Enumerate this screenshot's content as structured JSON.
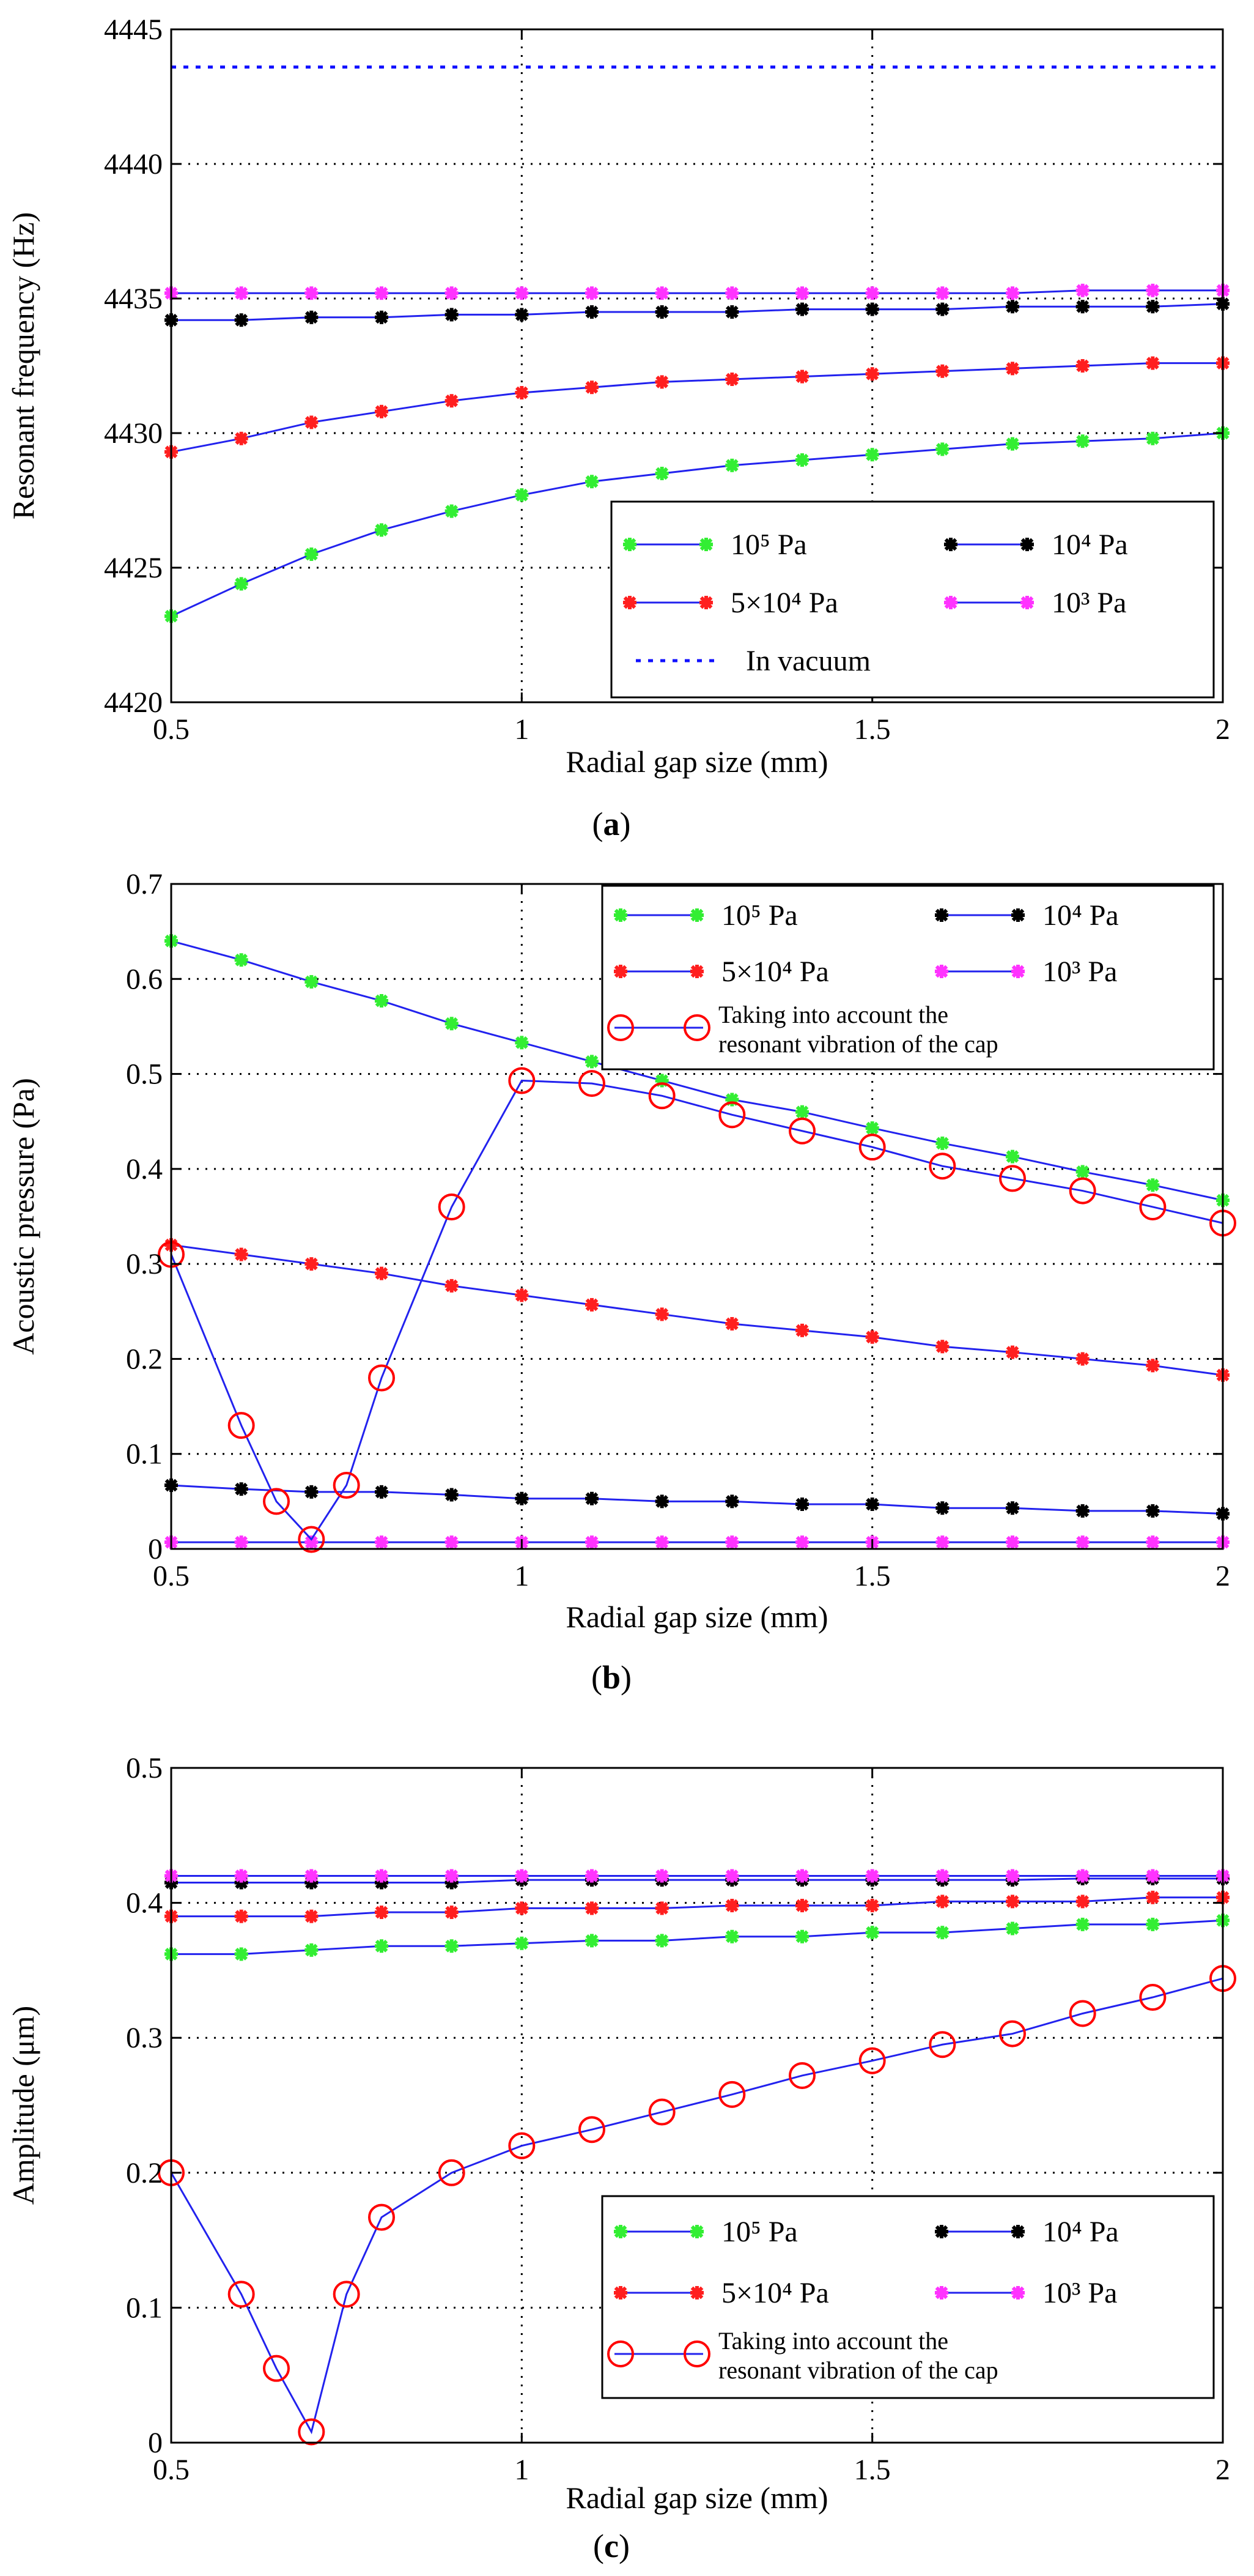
{
  "colors": {
    "green": "#33ee33",
    "black": "#000000",
    "red": "#ff1f1f",
    "magenta": "#ff33ff",
    "blue_line": "#2222ee",
    "open_red": "#ff0000",
    "vacuum": "#1010ff"
  },
  "chart_data": [
    {
      "id": "a",
      "type": "line",
      "caption_letter": "a",
      "xlabel": "Radial gap size (mm)",
      "ylabel": "Resonant frequency (Hz)",
      "xlim": [
        0.5,
        2
      ],
      "ylim": [
        4420,
        4445
      ],
      "xticks": [
        0.5,
        1,
        1.5,
        2
      ],
      "xtick_labels": [
        "0.5",
        "1",
        "1.5",
        "2"
      ],
      "yticks": [
        4420,
        4425,
        4430,
        4435,
        4440,
        4445
      ],
      "ytick_labels": [
        "4420",
        "4425",
        "4430",
        "4435",
        "4440",
        "4445"
      ],
      "grid": true,
      "legend_position": "lower-right",
      "x": [
        0.5,
        0.6,
        0.7,
        0.8,
        0.9,
        1.0,
        1.1,
        1.2,
        1.3,
        1.4,
        1.5,
        1.6,
        1.7,
        1.8,
        1.9,
        2.0
      ],
      "series": [
        {
          "name": "10⁵ Pa",
          "color": "green",
          "marker": "star",
          "values": [
            4423.2,
            4424.4,
            4425.5,
            4426.4,
            4427.1,
            4427.7,
            4428.2,
            4428.5,
            4428.8,
            4429.0,
            4429.2,
            4429.4,
            4429.6,
            4429.7,
            4429.8,
            4430.0
          ]
        },
        {
          "name": "10⁴ Pa",
          "color": "black",
          "marker": "star",
          "values": [
            4434.2,
            4434.2,
            4434.3,
            4434.3,
            4434.4,
            4434.4,
            4434.5,
            4434.5,
            4434.5,
            4434.6,
            4434.6,
            4434.6,
            4434.7,
            4434.7,
            4434.7,
            4434.8
          ]
        },
        {
          "name": "5×10⁴ Pa",
          "color": "red",
          "marker": "star",
          "values": [
            4429.3,
            4429.8,
            4430.4,
            4430.8,
            4431.2,
            4431.5,
            4431.7,
            4431.9,
            4432.0,
            4432.1,
            4432.2,
            4432.3,
            4432.4,
            4432.5,
            4432.6,
            4432.6
          ]
        },
        {
          "name": "10³ Pa",
          "color": "magenta",
          "marker": "star",
          "values": [
            4435.2,
            4435.2,
            4435.2,
            4435.2,
            4435.2,
            4435.2,
            4435.2,
            4435.2,
            4435.2,
            4435.2,
            4435.2,
            4435.2,
            4435.2,
            4435.3,
            4435.3,
            4435.3
          ]
        },
        {
          "name": "In vacuum",
          "color": "vacuum",
          "marker": "none",
          "dashed": true,
          "values": [
            4443.6,
            4443.6,
            4443.6,
            4443.6,
            4443.6,
            4443.6,
            4443.6,
            4443.6,
            4443.6,
            4443.6,
            4443.6,
            4443.6,
            4443.6,
            4443.6,
            4443.6,
            4443.6
          ]
        }
      ]
    },
    {
      "id": "b",
      "type": "line",
      "caption_letter": "b",
      "xlabel": "Radial gap size (mm)",
      "ylabel": "Acoustic pressure (Pa)",
      "xlim": [
        0.5,
        2
      ],
      "ylim": [
        0,
        0.7
      ],
      "xticks": [
        0.5,
        1,
        1.5,
        2
      ],
      "xtick_labels": [
        "0.5",
        "1",
        "1.5",
        "2"
      ],
      "yticks": [
        0,
        0.1,
        0.2,
        0.3,
        0.4,
        0.5,
        0.6,
        0.7
      ],
      "ytick_labels": [
        "0",
        "0.1",
        "0.2",
        "0.3",
        "0.4",
        "0.5",
        "0.6",
        "0.7"
      ],
      "grid": true,
      "legend_position": "top-right",
      "x": [
        0.5,
        0.6,
        0.7,
        0.8,
        0.9,
        1.0,
        1.1,
        1.2,
        1.3,
        1.4,
        1.5,
        1.6,
        1.7,
        1.8,
        1.9,
        2.0
      ],
      "series": [
        {
          "name": "10⁵ Pa",
          "color": "green",
          "marker": "star",
          "values": [
            0.64,
            0.62,
            0.597,
            0.577,
            0.553,
            0.533,
            0.513,
            0.493,
            0.473,
            0.46,
            0.443,
            0.427,
            0.413,
            0.397,
            0.383,
            0.367
          ]
        },
        {
          "name": "10⁴ Pa",
          "color": "black",
          "marker": "star",
          "values": [
            0.067,
            0.063,
            0.06,
            0.06,
            0.057,
            0.053,
            0.053,
            0.05,
            0.05,
            0.047,
            0.047,
            0.043,
            0.043,
            0.04,
            0.04,
            0.037
          ]
        },
        {
          "name": "5×10⁴ Pa",
          "color": "red",
          "marker": "star",
          "values": [
            0.32,
            0.31,
            0.3,
            0.29,
            0.277,
            0.267,
            0.257,
            0.247,
            0.237,
            0.23,
            0.223,
            0.213,
            0.207,
            0.2,
            0.193,
            0.183
          ]
        },
        {
          "name": "10³ Pa",
          "color": "magenta",
          "marker": "star",
          "values": [
            0.007,
            0.007,
            0.007,
            0.007,
            0.007,
            0.007,
            0.007,
            0.007,
            0.007,
            0.007,
            0.007,
            0.007,
            0.007,
            0.007,
            0.007,
            0.007
          ]
        },
        {
          "name_lines": [
            "Taking into account the",
            "resonant vibration of the cap"
          ],
          "color": "open_red",
          "marker": "circle",
          "x": [
            0.5,
            0.6,
            0.65,
            0.7,
            0.75,
            0.8,
            0.9,
            1.0,
            1.1,
            1.2,
            1.3,
            1.4,
            1.5,
            1.6,
            1.7,
            1.8,
            1.9,
            2.0
          ],
          "values": [
            0.31,
            0.13,
            0.05,
            0.01,
            0.067,
            0.18,
            0.36,
            0.493,
            0.49,
            0.477,
            0.457,
            0.44,
            0.423,
            0.403,
            0.39,
            0.377,
            0.36,
            0.343
          ]
        }
      ]
    },
    {
      "id": "c",
      "type": "line",
      "caption_letter": "c",
      "xlabel": "Radial gap size (mm)",
      "ylabel": "Amplitude (μm)",
      "xlim": [
        0.5,
        2
      ],
      "ylim": [
        0,
        0.5
      ],
      "xticks": [
        0.5,
        1,
        1.5,
        2
      ],
      "xtick_labels": [
        "0.5",
        "1",
        "1.5",
        "2"
      ],
      "yticks": [
        0,
        0.1,
        0.2,
        0.3,
        0.4,
        0.5
      ],
      "ytick_labels": [
        "0",
        "0.1",
        "0.2",
        "0.3",
        "0.4",
        "0.5"
      ],
      "grid": true,
      "legend_position": "lower-right",
      "x": [
        0.5,
        0.6,
        0.7,
        0.8,
        0.9,
        1.0,
        1.1,
        1.2,
        1.3,
        1.4,
        1.5,
        1.6,
        1.7,
        1.8,
        1.9,
        2.0
      ],
      "series": [
        {
          "name": "10⁵ Pa",
          "color": "green",
          "marker": "star",
          "values": [
            0.362,
            0.362,
            0.365,
            0.368,
            0.368,
            0.37,
            0.372,
            0.372,
            0.375,
            0.375,
            0.378,
            0.378,
            0.381,
            0.384,
            0.384,
            0.387
          ]
        },
        {
          "name": "10⁴ Pa",
          "color": "black",
          "marker": "star",
          "values": [
            0.415,
            0.415,
            0.415,
            0.415,
            0.415,
            0.417,
            0.417,
            0.417,
            0.417,
            0.417,
            0.417,
            0.417,
            0.417,
            0.418,
            0.418,
            0.418
          ]
        },
        {
          "name": "5×10⁴ Pa",
          "color": "red",
          "marker": "star",
          "values": [
            0.39,
            0.39,
            0.39,
            0.393,
            0.393,
            0.396,
            0.396,
            0.396,
            0.398,
            0.398,
            0.398,
            0.401,
            0.401,
            0.401,
            0.404,
            0.404
          ]
        },
        {
          "name": "10³ Pa",
          "color": "magenta",
          "marker": "star",
          "values": [
            0.42,
            0.42,
            0.42,
            0.42,
            0.42,
            0.42,
            0.42,
            0.42,
            0.42,
            0.42,
            0.42,
            0.42,
            0.42,
            0.42,
            0.42,
            0.42
          ]
        },
        {
          "name_lines": [
            "Taking into account the",
            "resonant vibration of the cap"
          ],
          "color": "open_red",
          "marker": "circle",
          "x": [
            0.5,
            0.6,
            0.65,
            0.7,
            0.75,
            0.8,
            0.9,
            1.0,
            1.1,
            1.2,
            1.3,
            1.4,
            1.5,
            1.6,
            1.7,
            1.8,
            1.9,
            2.0
          ],
          "values": [
            0.2,
            0.11,
            0.055,
            0.008,
            0.11,
            0.167,
            0.2,
            0.22,
            0.232,
            0.245,
            0.258,
            0.272,
            0.283,
            0.295,
            0.303,
            0.318,
            0.33,
            0.344
          ]
        }
      ]
    }
  ]
}
